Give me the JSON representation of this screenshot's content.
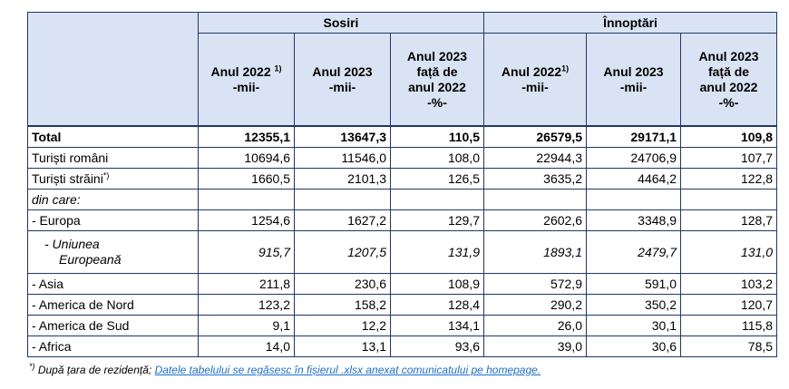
{
  "groups": [
    "Sosiri",
    "Înnoptări"
  ],
  "headers": {
    "y2022_a": "Anul 2022",
    "y2022_a_sup": "1)",
    "y2022_b": "Anul 2022",
    "y2022_b_sup": "1)",
    "unit_mii": "-mii-",
    "y2023": "Anul 2023",
    "cmp_l1": "Anul 2023",
    "cmp_l2": "față de",
    "cmp_l3": "anul 2022",
    "unit_pct": "-%-"
  },
  "rows": [
    {
      "label": "Total",
      "values": [
        "12355,1",
        "13647,3",
        "110,5",
        "26579,5",
        "29171,1",
        "109,8"
      ]
    },
    {
      "label": "Turiști români",
      "values": [
        "10694,6",
        "11546,0",
        "108,0",
        "22944,3",
        "24706,9",
        "107,7"
      ]
    },
    {
      "label": "Turiști străini",
      "sup": "*)",
      "values": [
        "1660,5",
        "2101,3",
        "126,5",
        "3635,2",
        "4464,2",
        "122,8"
      ]
    },
    {
      "label": "din care:",
      "values": [
        "",
        "",
        "",
        "",
        "",
        ""
      ]
    },
    {
      "label": "- Europa",
      "values": [
        "1254,6",
        "1627,2",
        "129,7",
        "2602,6",
        "3348,9",
        "128,7"
      ]
    },
    {
      "label_l1": "- Uniunea",
      "label_l2": "Europeană",
      "values": [
        "915,7",
        "1207,5",
        "131,9",
        "1893,1",
        "2479,7",
        "131,0"
      ]
    },
    {
      "label": "- Asia",
      "values": [
        "211,8",
        "230,6",
        "108,9",
        "572,9",
        "591,0",
        "103,2"
      ]
    },
    {
      "label": "- America de Nord",
      "values": [
        "123,2",
        "158,2",
        "128,4",
        "290,2",
        "350,2",
        "120,7"
      ]
    },
    {
      "label": "- America de Sud",
      "values": [
        "9,1",
        "12,2",
        "134,1",
        "26,0",
        "30,1",
        "115,8"
      ]
    },
    {
      "label": "- Africa",
      "values": [
        "14,0",
        "13,1",
        "93,6",
        "39,0",
        "30,6",
        "78,5"
      ]
    }
  ],
  "footnote": {
    "sup": "*)",
    "text": " După țara de rezidență; ",
    "link": "Datele tabelului se regăsesc în fișierul .xlsx anexat comunicatului pe homepage."
  }
}
